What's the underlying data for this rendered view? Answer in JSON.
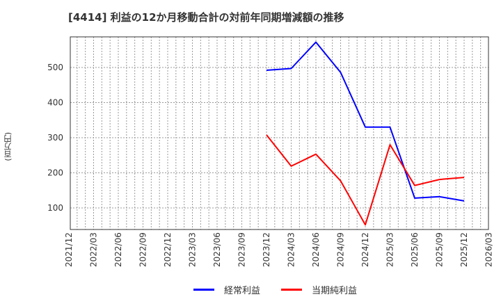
{
  "title": "[4414]  利益の12か月移動合計の対前年同期増減額の推移",
  "y_axis_label": "(百万円)",
  "chart_data": {
    "type": "line",
    "title": "[4414]  利益の12か月移動合計の対前年同期増減額の推移",
    "xlabel": "",
    "ylabel": "(百万円)",
    "ylim": [
      40,
      586
    ],
    "y_ticks": [
      100,
      200,
      300,
      400,
      500
    ],
    "x_ticks": [
      "2021/12",
      "2022/03",
      "2022/06",
      "2022/09",
      "2022/12",
      "2023/03",
      "2023/06",
      "2023/09",
      "2023/12",
      "2024/03",
      "2024/06",
      "2024/09",
      "2024/12",
      "2025/03",
      "2025/06",
      "2025/09",
      "2025/12",
      "2026/03"
    ],
    "grid": true,
    "legend_position": "bottom",
    "x": [
      "2023/12",
      "2024/03",
      "2024/06",
      "2024/09",
      "2024/12",
      "2025/03",
      "2025/06",
      "2025/09",
      "2025/12"
    ],
    "series": [
      {
        "name": "経常利益",
        "color": "#0000ff",
        "values": [
          492,
          497,
          572,
          486,
          330,
          330,
          128,
          132,
          120
        ]
      },
      {
        "name": "当期純利益",
        "color": "#ff0000",
        "values": [
          308,
          219,
          253,
          177,
          52,
          280,
          164,
          181,
          187
        ]
      }
    ]
  },
  "legend": [
    {
      "label": "経常利益",
      "color": "#0000ff"
    },
    {
      "label": "当期純利益",
      "color": "#ff0000"
    }
  ]
}
